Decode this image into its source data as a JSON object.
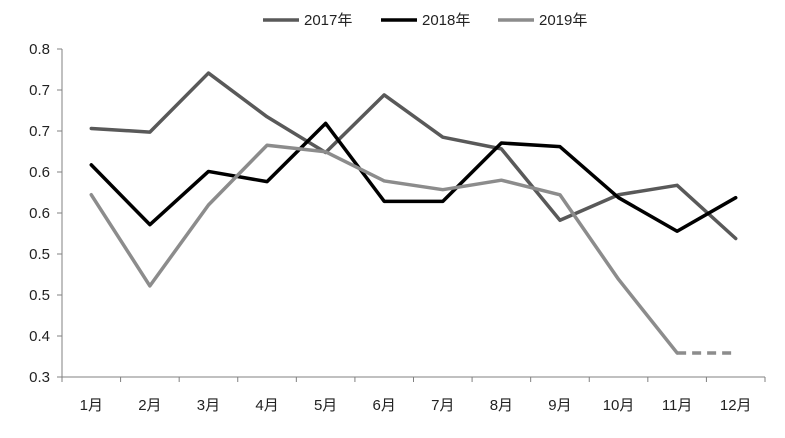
{
  "chart_data": {
    "type": "line",
    "title": "",
    "xlabel": "",
    "ylabel": "",
    "categories": [
      "1月",
      "2月",
      "3月",
      "4月",
      "5月",
      "6月",
      "7月",
      "8月",
      "9月",
      "10月",
      "11月",
      "12月"
    ],
    "y_tick_labels": [
      "0.3",
      "0.4",
      "0.5",
      "0.5",
      "0.6",
      "0.6",
      "0.7",
      "0.7",
      "0.8"
    ],
    "ylim": [
      0.3,
      0.75
    ],
    "legend_position": "top",
    "grid": false,
    "series": [
      {
        "name": "2017年",
        "color": "#595959",
        "values": [
          0.641,
          0.636,
          0.717,
          0.657,
          0.608,
          0.687,
          0.629,
          0.613,
          0.515,
          0.55,
          0.563,
          0.49
        ],
        "dashed_from_index": null
      },
      {
        "name": "2018年",
        "color": "#000000",
        "values": [
          0.591,
          0.509,
          0.582,
          0.568,
          0.648,
          0.541,
          0.541,
          0.621,
          0.616,
          0.546,
          0.5,
          0.546
        ],
        "dashed_from_index": null
      },
      {
        "name": "2019年",
        "color": "#8c8c8c",
        "values": [
          0.55,
          0.425,
          0.536,
          0.618,
          0.609,
          0.569,
          0.557,
          0.57,
          0.55,
          0.434,
          0.333,
          0.333
        ],
        "dashed_from_index": 10
      }
    ]
  }
}
